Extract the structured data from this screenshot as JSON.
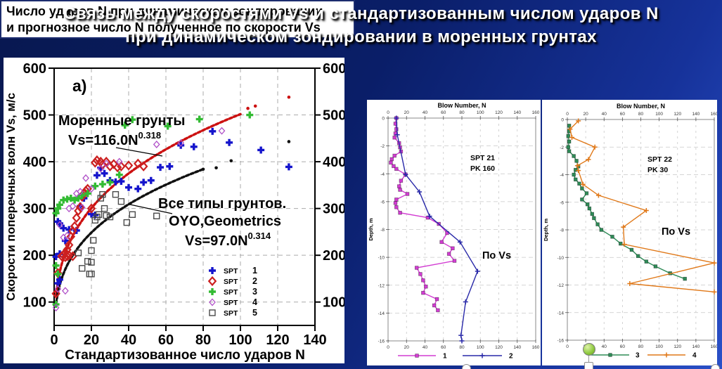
{
  "slide_title": {
    "line1": "Связь между скоростями Vs и стандартизованным числом ударов N",
    "line2": "при динамическом зондировании в моренных грунтах"
  },
  "right_panel_header": {
    "line1": "Число ударов N при динамическом зондировании",
    "line2": "и прогнозное число N полученное по скорости Vs"
  },
  "colors": {
    "background_dark": "#0a1e68",
    "background_bright": "#2a50c8",
    "title_text": "#ffffff",
    "header_border": "#1c2c6e"
  },
  "chart_data": [
    {
      "type": "scatter",
      "panel_label": "a)",
      "xlabel": "Стандартизованное число ударов N",
      "ylabel": "Скорости поперечных волн Vs, м/с",
      "xlim": [
        0,
        140
      ],
      "ylim": [
        50,
        600
      ],
      "xticks": [
        0,
        20,
        40,
        60,
        80,
        100,
        120,
        140
      ],
      "yticks": [
        100,
        200,
        300,
        400,
        500,
        600
      ],
      "grid": true,
      "legend_position": "inside-lower-right",
      "series": [
        {
          "name": "SPT 1",
          "marker": "plus",
          "color": "#1414cc",
          "in_legend": true,
          "points": [
            [
              2,
              140
            ],
            [
              3,
              148
            ],
            [
              1,
              197
            ],
            [
              3,
              203
            ],
            [
              2,
              272
            ],
            [
              3,
              268
            ],
            [
              5,
              258
            ],
            [
              8,
              255
            ],
            [
              12,
              253
            ],
            [
              6,
              231
            ],
            [
              14,
              305
            ],
            [
              16,
              322
            ],
            [
              20,
              288
            ],
            [
              22,
              286
            ],
            [
              23,
              371
            ],
            [
              25,
              387
            ],
            [
              27,
              375
            ],
            [
              30,
              360
            ],
            [
              33,
              357
            ],
            [
              36,
              358
            ],
            [
              40,
              345
            ],
            [
              45,
              342
            ],
            [
              48,
              356
            ],
            [
              52,
              360
            ],
            [
              57,
              388
            ],
            [
              62,
              390
            ],
            [
              68,
              435
            ],
            [
              75,
              432
            ],
            [
              85,
              465
            ],
            [
              94,
              441
            ],
            [
              111,
              425
            ],
            [
              126,
              389
            ]
          ]
        },
        {
          "name": "SPT 2",
          "marker": "diamond",
          "color": "#cc2020",
          "in_legend": true,
          "points": [
            [
              1,
              118
            ],
            [
              2,
              162
            ],
            [
              4,
              198
            ],
            [
              5,
              200
            ],
            [
              6,
              206
            ],
            [
              6,
              196
            ],
            [
              7,
              212
            ],
            [
              7,
              198
            ],
            [
              8,
              222
            ],
            [
              8,
              200
            ],
            [
              9,
              240
            ],
            [
              10,
              252
            ],
            [
              10,
              198
            ],
            [
              11,
              262
            ],
            [
              12,
              280
            ],
            [
              13,
              295
            ],
            [
              14,
              303
            ],
            [
              15,
              325
            ],
            [
              16,
              332
            ],
            [
              17,
              338
            ],
            [
              18,
              342
            ],
            [
              20,
              300
            ],
            [
              22,
              398
            ],
            [
              23,
              403
            ],
            [
              25,
              400
            ],
            [
              26,
              394
            ],
            [
              28,
              400
            ],
            [
              30,
              390
            ],
            [
              32,
              395
            ],
            [
              34,
              388
            ],
            [
              36,
              390
            ],
            [
              40,
              392
            ],
            [
              45,
              396
            ],
            [
              48,
              390
            ]
          ]
        },
        {
          "name": "SPT 3",
          "marker": "plus",
          "color": "#33bb33",
          "in_legend": true,
          "points": [
            [
              1,
              95
            ],
            [
              1,
              178
            ],
            [
              2,
              160
            ],
            [
              1,
              290
            ],
            [
              2,
              300
            ],
            [
              3,
              308
            ],
            [
              5,
              318
            ],
            [
              7,
              320
            ],
            [
              9,
              322
            ],
            [
              11,
              318
            ],
            [
              13,
              322
            ],
            [
              15,
              328
            ],
            [
              18,
              332
            ],
            [
              22,
              348
            ],
            [
              26,
              352
            ],
            [
              30,
              356
            ],
            [
              35,
              372
            ],
            [
              38,
              478
            ],
            [
              42,
              490
            ],
            [
              61,
              476
            ],
            [
              78,
              491
            ],
            [
              105,
              500
            ]
          ]
        },
        {
          "name": "SPT 4",
          "marker": "diamond-thin",
          "color": "#b050c8",
          "in_legend": true,
          "points": [
            [
              1,
              88
            ],
            [
              2,
              128
            ],
            [
              6,
              124
            ],
            [
              3,
              265
            ],
            [
              5,
              238
            ],
            [
              7,
              242
            ],
            [
              8,
              300
            ],
            [
              10,
              305
            ],
            [
              12,
              332
            ],
            [
              14,
              336
            ],
            [
              15,
              302
            ],
            [
              17,
              365
            ],
            [
              20,
              342
            ],
            [
              25,
              385
            ],
            [
              28,
              396
            ],
            [
              35,
              400
            ],
            [
              55,
              437
            ],
            [
              68,
              440
            ],
            [
              90,
              466
            ]
          ]
        },
        {
          "name": "SPT 5",
          "marker": "square-open",
          "color": "#4a4a4a",
          "in_legend": true,
          "points": [
            [
              13,
              205
            ],
            [
              15,
              172
            ],
            [
              18,
              187
            ],
            [
              19,
              160
            ],
            [
              20,
              185
            ],
            [
              20,
              210
            ],
            [
              21,
              232
            ],
            [
              22,
              275
            ],
            [
              23,
              282
            ],
            [
              24,
              287
            ],
            [
              25,
              322
            ],
            [
              26,
              330
            ],
            [
              27,
              300
            ],
            [
              28,
              285
            ],
            [
              30,
              282
            ],
            [
              33,
              330
            ],
            [
              36,
              315
            ],
            [
              39,
              270
            ],
            [
              42,
              287
            ],
            [
              55,
              284
            ],
            [
              20,
              160
            ]
          ]
        },
        {
          "name": "morainic-fit-extra-dots",
          "marker": "dot",
          "color": "#cc1111",
          "in_legend": false,
          "points": [
            [
              104,
              514
            ],
            [
              108,
              519
            ],
            [
              126,
              538
            ]
          ]
        },
        {
          "name": "all-soils-fit-extra-dots",
          "marker": "dot",
          "color": "#111111",
          "in_legend": false,
          "points": [
            [
              80,
              384
            ],
            [
              87,
              387
            ],
            [
              95,
              402
            ],
            [
              126,
              443
            ]
          ]
        }
      ],
      "curves": [
        {
          "label": "Моренные грунты",
          "equation": "Vs=116.0N",
          "exponent": "0.318",
          "a": 116.0,
          "b": 0.318,
          "n_range": [
            1,
            100
          ],
          "color": "#cc1111"
        },
        {
          "label_line1": "Все типы грунтов.",
          "label_line2": "OYO,Geometrics",
          "equation": "Vs=97.0N",
          "exponent": "0.314",
          "a": 97.0,
          "b": 0.314,
          "n_range": [
            1,
            80
          ],
          "color": "#111111"
        }
      ]
    },
    {
      "type": "line",
      "orientation": "depth-profile",
      "title": "Blow Number, N",
      "ylabel": "Depth, m",
      "station_line1": "SPT 21",
      "station_line2": "PK 160",
      "annotation": "По Vs",
      "xlim": [
        0,
        160
      ],
      "xticks": [
        0,
        20,
        40,
        60,
        80,
        100,
        120,
        140,
        160
      ],
      "ylim": [
        0,
        -16
      ],
      "yticks": [
        0,
        -2,
        -4,
        -6,
        -8,
        -10,
        -12,
        -14,
        -16
      ],
      "series": [
        {
          "name": "1",
          "marker": "square",
          "color": "#d23cd2",
          "points": [
            [
              9,
              0
            ],
            [
              8,
              -0.4
            ],
            [
              9,
              -0.8
            ],
            [
              8,
              -1.1
            ],
            [
              7,
              -1.4
            ],
            [
              12,
              -1.8
            ],
            [
              13,
              -2.1
            ],
            [
              14,
              -2.4
            ],
            [
              7,
              -2.7
            ],
            [
              4,
              -2.95
            ],
            [
              3,
              -3.2
            ],
            [
              6,
              -3.45
            ],
            [
              9,
              -3.65
            ],
            [
              19,
              -4.05
            ],
            [
              14,
              -4.5
            ],
            [
              12,
              -4.9
            ],
            [
              13,
              -5.15
            ],
            [
              21,
              -5.45
            ],
            [
              9,
              -5.85
            ],
            [
              8,
              -6.1
            ],
            [
              9,
              -6.4
            ],
            [
              13,
              -6.8
            ],
            [
              43,
              -7.15
            ],
            [
              55,
              -7.6
            ],
            [
              64,
              -8.25
            ],
            [
              58,
              -8.9
            ],
            [
              70,
              -9.35
            ],
            [
              66,
              -9.75
            ],
            [
              72,
              -10.25
            ],
            [
              31,
              -10.75
            ],
            [
              35,
              -11.2
            ],
            [
              38,
              -11.65
            ],
            [
              41,
              -12.1
            ],
            [
              38,
              -12.55
            ],
            [
              53,
              -13.0
            ],
            [
              50,
              -13.45
            ],
            [
              54,
              -13.8
            ]
          ]
        },
        {
          "name": "2",
          "marker": "plus",
          "color": "#2828a8",
          "points": [
            [
              9,
              0
            ],
            [
              10,
              -1.2
            ],
            [
              19,
              -4.05
            ],
            [
              34,
              -5.3
            ],
            [
              45,
              -7.05
            ],
            [
              78,
              -8.9
            ],
            [
              97,
              -11.0
            ],
            [
              84,
              -13.2
            ],
            [
              79,
              -15.6
            ],
            [
              80,
              -16.0
            ]
          ]
        }
      ]
    },
    {
      "type": "line",
      "orientation": "depth-profile",
      "title": "Blow Number, N",
      "ylabel": "Depth, m",
      "station_line1": "SPT 22",
      "station_line2": "PK 30",
      "annotation": "По Vs",
      "xlim": [
        0,
        160
      ],
      "xticks": [
        0,
        20,
        40,
        60,
        80,
        100,
        120,
        140,
        160
      ],
      "ylim": [
        0,
        -16
      ],
      "yticks": [
        0,
        -2,
        -4,
        -6,
        -8,
        -10,
        -12,
        -14,
        -16
      ],
      "series": [
        {
          "name": "3",
          "marker": "square",
          "color": "#2e8b57",
          "points": [
            [
              2,
              -0.45
            ],
            [
              2,
              -0.85
            ],
            [
              1,
              -1.2
            ],
            [
              2,
              -1.6
            ],
            [
              1,
              -2.0
            ],
            [
              2,
              -2.3
            ],
            [
              7,
              -2.65
            ],
            [
              10,
              -3.0
            ],
            [
              12,
              -3.4
            ],
            [
              9,
              -3.65
            ],
            [
              7,
              -4.0
            ],
            [
              9,
              -4.35
            ],
            [
              13,
              -4.65
            ],
            [
              16,
              -5.0
            ],
            [
              21,
              -5.35
            ],
            [
              16,
              -5.8
            ],
            [
              22,
              -6.15
            ],
            [
              24,
              -6.45
            ],
            [
              27,
              -6.85
            ],
            [
              29,
              -7.15
            ],
            [
              33,
              -7.6
            ],
            [
              37,
              -8.0
            ],
            [
              49,
              -8.5
            ],
            [
              58,
              -9.0
            ],
            [
              70,
              -9.45
            ],
            [
              77,
              -9.9
            ],
            [
              86,
              -10.3
            ],
            [
              96,
              -10.65
            ],
            [
              112,
              -11.15
            ],
            [
              128,
              -11.55
            ]
          ]
        },
        {
          "name": "4",
          "marker": "plus",
          "color": "#e07818",
          "points": [
            [
              12,
              -0.1
            ],
            [
              3,
              -0.7
            ],
            [
              5,
              -1.3
            ],
            [
              30,
              -2.0
            ],
            [
              23,
              -2.9
            ],
            [
              11,
              -3.35
            ],
            [
              12,
              -3.7
            ],
            [
              17,
              -4.7
            ],
            [
              34,
              -5.5
            ],
            [
              86,
              -6.6
            ],
            [
              61,
              -7.8
            ],
            [
              62,
              -9.05
            ],
            [
              160,
              -10.4
            ],
            [
              68,
              -11.9
            ],
            [
              160,
              -12.5
            ]
          ]
        }
      ]
    }
  ]
}
